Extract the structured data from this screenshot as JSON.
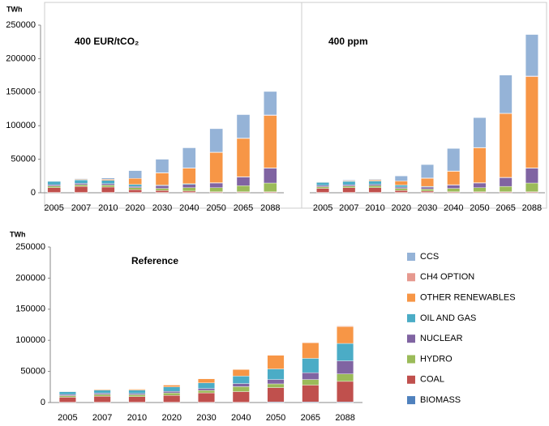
{
  "chart_data": [
    {
      "type": "stacked-bar",
      "title": "400 EUR/tCO₂",
      "ylabel": "TWh",
      "categories": [
        "2005",
        "2007",
        "2010",
        "2020",
        "2030",
        "2040",
        "2050",
        "2065",
        "2088"
      ],
      "ylim": [
        0,
        250000
      ],
      "yticks": [
        0,
        50000,
        100000,
        150000,
        200000,
        250000
      ],
      "series": [
        {
          "color": "#4f81bd",
          "values": [
            500,
            500,
            500,
            500,
            500,
            500,
            500,
            500,
            500
          ]
        },
        {
          "color": "#c0504d",
          "values": [
            7000,
            9000,
            8000,
            4000,
            3000,
            2000,
            1000,
            1000,
            1000
          ]
        },
        {
          "color": "#9bbb59",
          "values": [
            2500,
            2500,
            3000,
            3000,
            3000,
            5000,
            6000,
            9000,
            13000
          ]
        },
        {
          "color": "#8064a2",
          "values": [
            2000,
            2000,
            2000,
            2000,
            4000,
            5000,
            7000,
            13000,
            22000
          ]
        },
        {
          "color": "#4bacc6",
          "values": [
            5000,
            5000,
            5000,
            3000,
            1000,
            1000,
            500,
            500,
            500
          ]
        },
        {
          "color": "#f79646",
          "values": [
            500,
            1000,
            1500,
            9000,
            18000,
            23000,
            45000,
            57000,
            78000
          ]
        },
        {
          "color": "#e6998f",
          "values": [
            0,
            0,
            0,
            0,
            500,
            500,
            500,
            500,
            1000
          ]
        },
        {
          "color": "#95b3d7",
          "values": [
            500,
            1000,
            2000,
            11500,
            20000,
            30000,
            35000,
            35000,
            35000
          ]
        }
      ]
    },
    {
      "type": "stacked-bar",
      "title": "400 ppm",
      "categories": [
        "2005",
        "2007",
        "2010",
        "2020",
        "2030",
        "2040",
        "2050",
        "2065",
        "2088"
      ],
      "ylim": [
        0,
        250000
      ],
      "series": [
        {
          "color": "#4f81bd",
          "values": [
            500,
            500,
            500,
            500,
            500,
            500,
            500,
            500,
            500
          ]
        },
        {
          "color": "#c0504d",
          "values": [
            6000,
            7000,
            7000,
            3000,
            2000,
            1000,
            1000,
            1000,
            1000
          ]
        },
        {
          "color": "#9bbb59",
          "values": [
            2500,
            2500,
            3000,
            3000,
            3000,
            5000,
            6000,
            8000,
            13000
          ]
        },
        {
          "color": "#8064a2",
          "values": [
            2000,
            2000,
            2000,
            2000,
            3000,
            5000,
            7000,
            13000,
            22000
          ]
        },
        {
          "color": "#4bacc6",
          "values": [
            4500,
            5000,
            5000,
            3000,
            1000,
            500,
            500,
            500,
            500
          ]
        },
        {
          "color": "#f79646",
          "values": [
            500,
            1000,
            1500,
            6000,
            12000,
            20000,
            52000,
            95000,
            136000
          ]
        },
        {
          "color": "#e6998f",
          "values": [
            0,
            0,
            0,
            0,
            500,
            500,
            500,
            500,
            1000
          ]
        },
        {
          "color": "#95b3d7",
          "values": [
            0,
            1000,
            1000,
            7500,
            20000,
            33500,
            44500,
            57000,
            62000
          ]
        }
      ]
    },
    {
      "type": "stacked-bar",
      "title": "Reference",
      "ylabel": "TWh",
      "categories": [
        "2005",
        "2007",
        "2010",
        "2020",
        "2030",
        "2040",
        "2050",
        "2065",
        "2088"
      ],
      "ylim": [
        0,
        250000
      ],
      "yticks": [
        0,
        50000,
        100000,
        150000,
        200000,
        250000
      ],
      "series": [
        {
          "name": "BIOMASS",
          "color": "#4f81bd",
          "values": [
            500,
            500,
            500,
            500,
            500,
            500,
            1000,
            1000,
            1000
          ]
        },
        {
          "name": "COAL",
          "color": "#c0504d",
          "values": [
            8000,
            9500,
            9000,
            11000,
            15000,
            17000,
            23000,
            27000,
            33000
          ]
        },
        {
          "name": "HYDRO",
          "color": "#9bbb59",
          "values": [
            2500,
            3000,
            3000,
            4000,
            4000,
            8000,
            6000,
            9000,
            12000
          ]
        },
        {
          "name": "NUCLEAR",
          "color": "#8064a2",
          "values": [
            2000,
            2000,
            2000,
            2500,
            3000,
            5000,
            7000,
            11000,
            21000
          ]
        },
        {
          "name": "OIL AND GAS",
          "color": "#4bacc6",
          "values": [
            4500,
            5000,
            5500,
            7000,
            9000,
            12000,
            17000,
            23000,
            28000
          ]
        },
        {
          "name": "OTHER RENEWABLES",
          "color": "#f79646",
          "values": [
            500,
            1000,
            1500,
            3000,
            6500,
            10500,
            22000,
            25000,
            27000
          ]
        },
        {
          "name": "CH4 OPTION",
          "color": "#e6998f",
          "values": [
            0,
            0,
            0,
            0,
            0,
            0,
            500,
            500,
            1000
          ]
        },
        {
          "name": "CCS",
          "color": "#95b3d7",
          "values": [
            0,
            0,
            500,
            0,
            0,
            0,
            0,
            0,
            0
          ]
        }
      ]
    }
  ]
}
